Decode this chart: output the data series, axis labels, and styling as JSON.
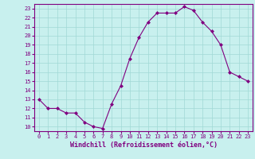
{
  "x": [
    0,
    1,
    2,
    3,
    4,
    5,
    6,
    7,
    8,
    9,
    10,
    11,
    12,
    13,
    14,
    15,
    16,
    17,
    18,
    19,
    20,
    21,
    22,
    23
  ],
  "y": [
    13,
    12,
    12,
    11.5,
    11.5,
    10.5,
    10,
    9.8,
    12.5,
    14.5,
    17.5,
    19.8,
    21.5,
    22.5,
    22.5,
    22.5,
    23.2,
    22.8,
    21.5,
    20.5,
    19,
    16,
    15.5,
    15
  ],
  "line_color": "#800080",
  "marker": "D",
  "marker_size": 2.0,
  "bg_color": "#c8f0ee",
  "grid_color": "#a0d8d5",
  "xlabel": "Windchill (Refroidissement éolien,°C)",
  "xlim": [
    -0.5,
    23.5
  ],
  "ylim": [
    9.5,
    23.5
  ],
  "xticks": [
    0,
    1,
    2,
    3,
    4,
    5,
    6,
    7,
    8,
    9,
    10,
    11,
    12,
    13,
    14,
    15,
    16,
    17,
    18,
    19,
    20,
    21,
    22,
    23
  ],
  "yticks": [
    10,
    11,
    12,
    13,
    14,
    15,
    16,
    17,
    18,
    19,
    20,
    21,
    22,
    23
  ],
  "tick_color": "#800080",
  "axis_color": "#800080",
  "label_fontsize": 6.0,
  "tick_fontsize": 5.0
}
